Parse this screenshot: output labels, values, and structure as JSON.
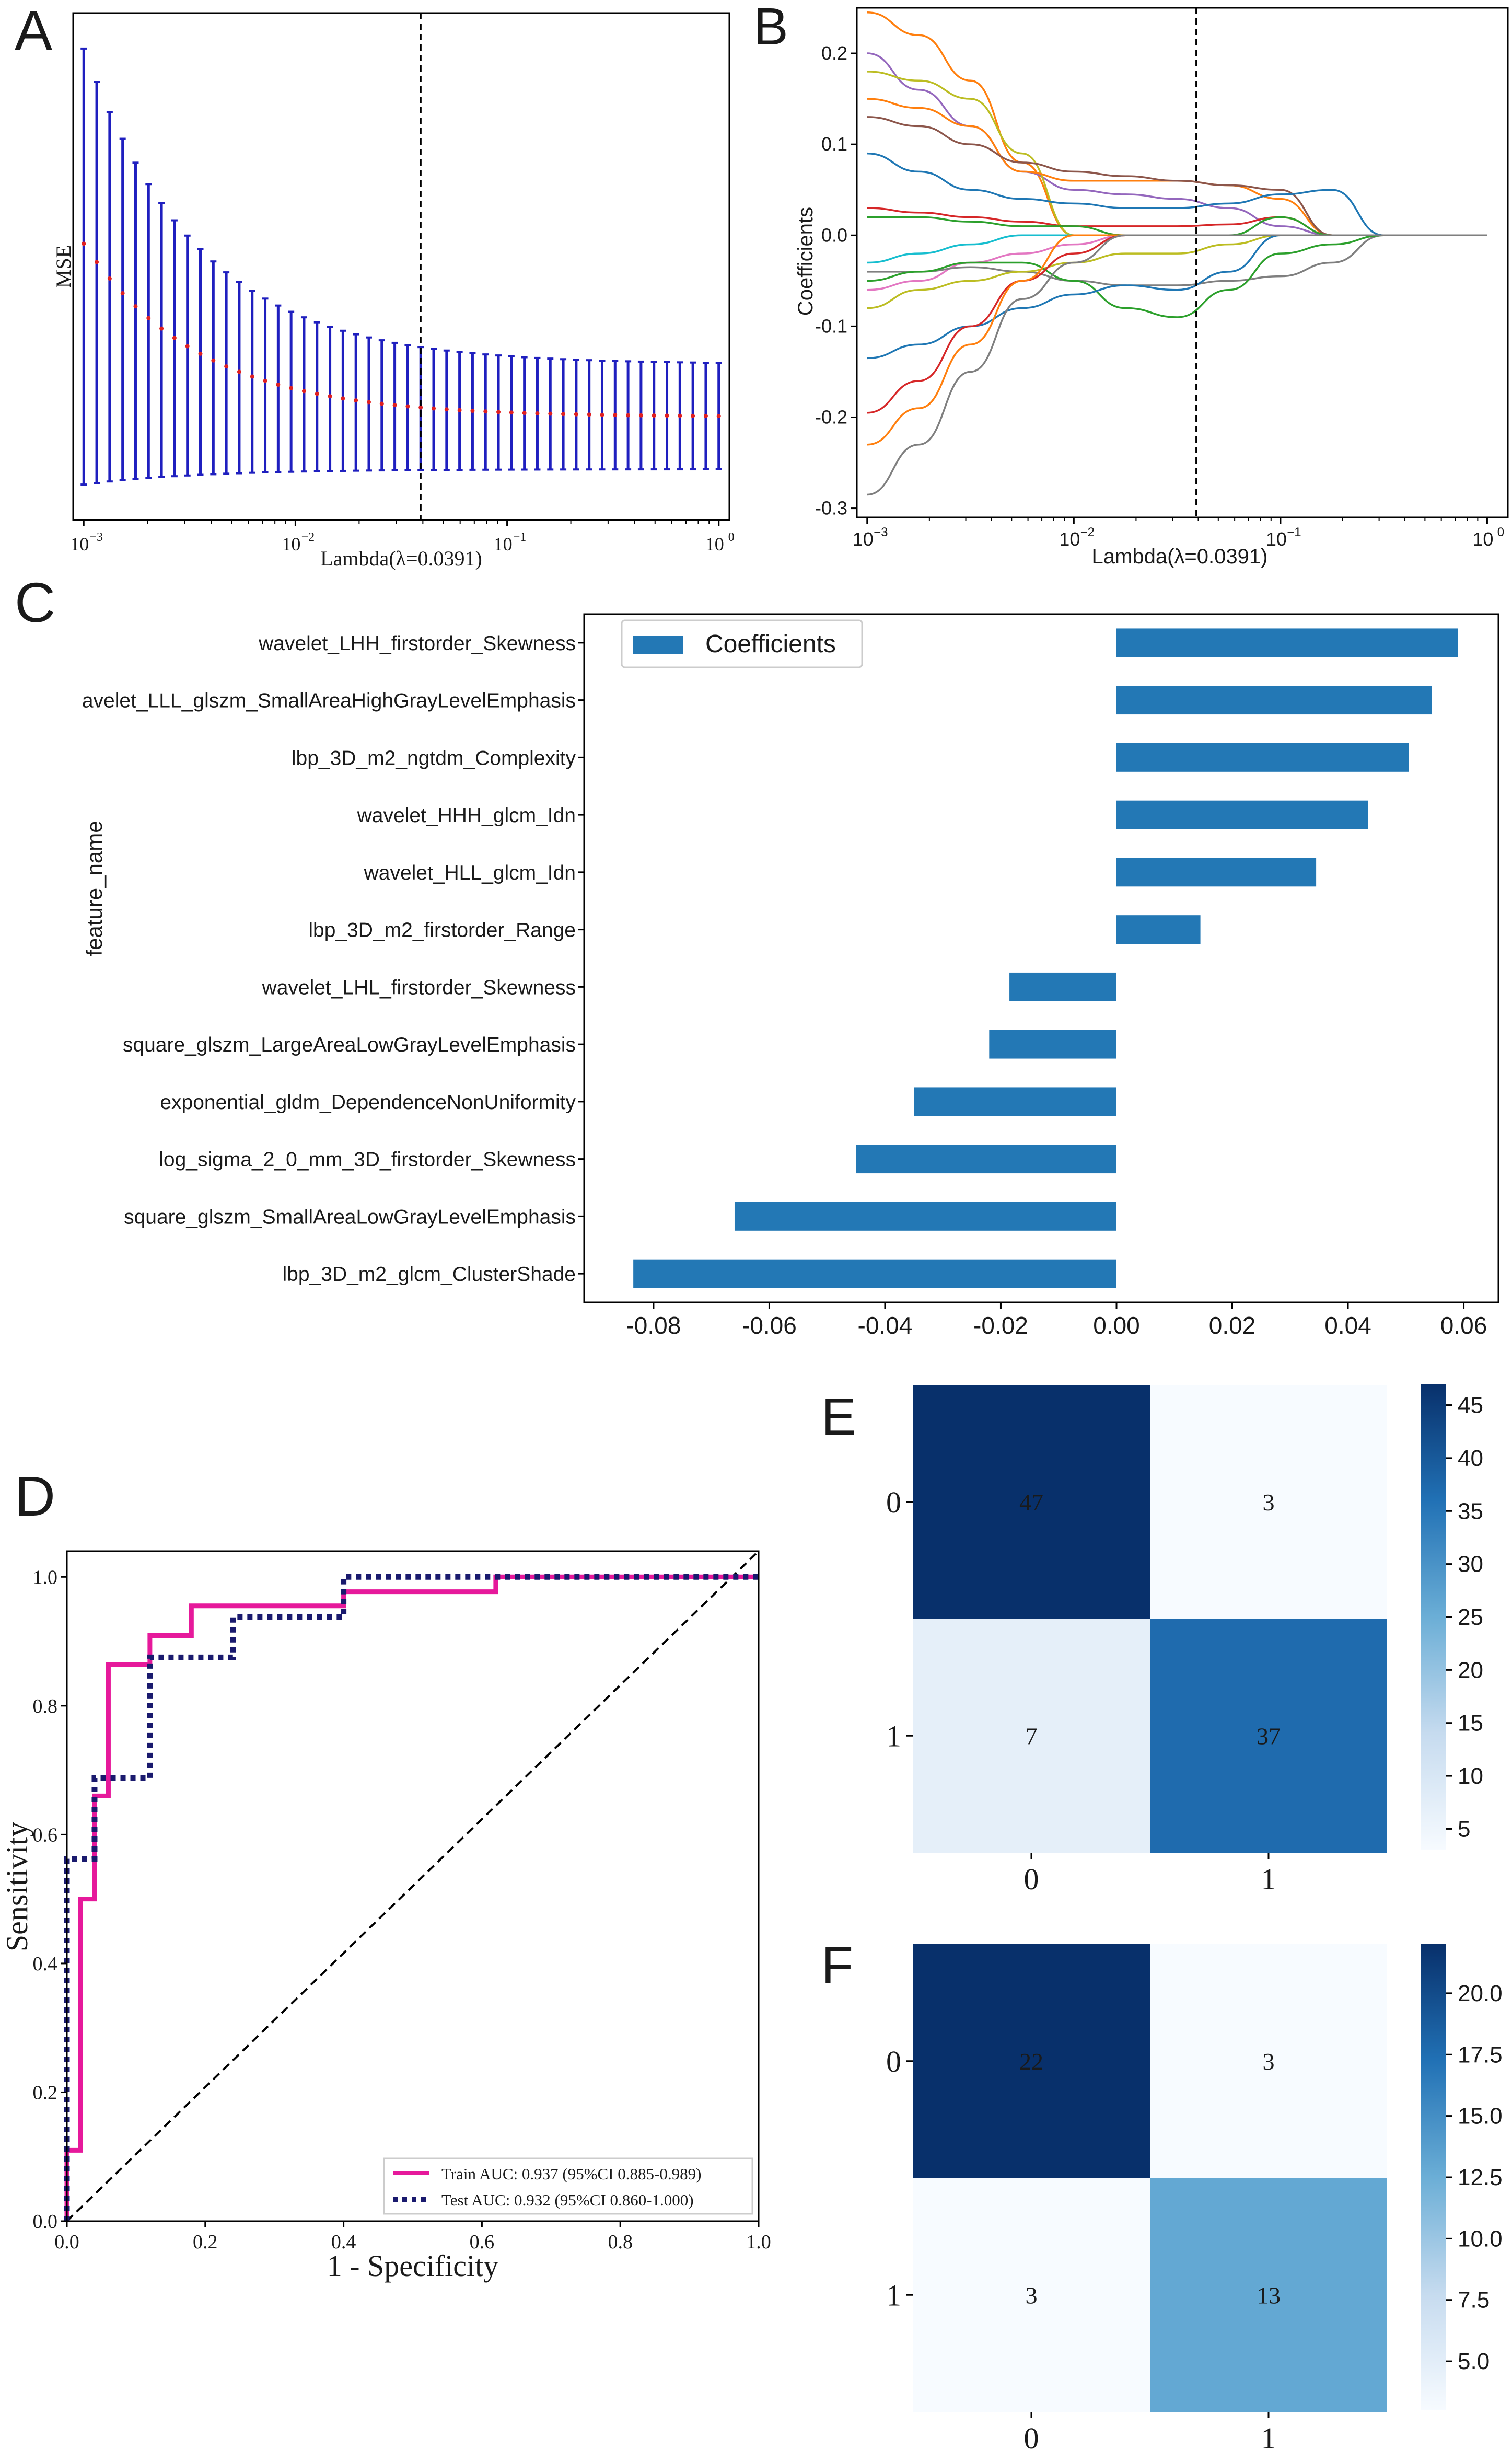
{
  "panels": {
    "A": {
      "letter": "A",
      "chart_data": {
        "type": "errorbar",
        "title": "",
        "xlabel": "Lambda(λ=0.0391)",
        "ylabel": "MSE",
        "xscale": "log",
        "xlim_exp": [
          -3.05,
          0.05
        ],
        "ylim": [
          0,
          1
        ],
        "lambda_line": 0.0391,
        "xtick_exps": [
          -3,
          -2,
          -1,
          0
        ],
        "xtick_labels": [
          "10",
          "10",
          "10",
          "10"
        ],
        "xtick_sup": [
          "−3",
          "−2",
          "−1",
          "0"
        ],
        "n_points": 50,
        "mean_start": 0.545,
        "mean_end": 0.205,
        "err_top_start": 0.93,
        "err_top_end": 0.31,
        "err_bot_start": 0.07,
        "err_bot_end": 0.1,
        "yticks": []
      }
    },
    "B": {
      "letter": "B",
      "chart_data": {
        "type": "line",
        "title": "",
        "xlabel": "Lambda(λ=0.0391)",
        "ylabel": "Coefficients",
        "xscale": "log",
        "xlim_exp": [
          -3.05,
          0.1
        ],
        "ylim": [
          -0.31,
          0.25
        ],
        "lambda_line": 0.0391,
        "xtick_exps": [
          -3,
          -2,
          -1,
          0
        ],
        "xtick_labels": [
          "10",
          "10",
          "10",
          "10"
        ],
        "xtick_sup": [
          "−3",
          "−2",
          "−1",
          "0"
        ],
        "ytick_values": [
          0.2,
          0.1,
          0.0,
          -0.1,
          -0.2,
          -0.3
        ],
        "ytick_labels": [
          "0.2",
          "0.1",
          "0.0",
          "-0.1",
          "-0.2",
          "-0.3"
        ],
        "x_exps": [
          -3,
          -2.75,
          -2.5,
          -2.25,
          -2,
          -1.75,
          -1.5,
          -1.25,
          -1,
          -0.75,
          -0.5,
          0
        ],
        "series": [
          {
            "color": "#ff7f0e",
            "values": [
              0.245,
              0.22,
              0.17,
              0.08,
              0.0,
              0.0,
              0.0,
              0.0,
              0.0,
              0.0,
              0.0,
              0.0
            ]
          },
          {
            "color": "#9467bd",
            "values": [
              0.2,
              0.16,
              0.12,
              0.07,
              0.05,
              0.045,
              0.04,
              0.03,
              0.01,
              0.0,
              0.0,
              0.0
            ]
          },
          {
            "color": "#bcbd22",
            "values": [
              0.18,
              0.17,
              0.15,
              0.09,
              0.0,
              0.0,
              0.0,
              0.0,
              0.0,
              0.0,
              0.0,
              0.0
            ]
          },
          {
            "color": "#ff7f0e",
            "values": [
              0.15,
              0.14,
              0.12,
              0.07,
              0.06,
              0.06,
              0.06,
              0.055,
              0.04,
              0.0,
              0.0,
              0.0
            ]
          },
          {
            "color": "#8c564b",
            "values": [
              0.13,
              0.12,
              0.1,
              0.08,
              0.07,
              0.065,
              0.06,
              0.055,
              0.05,
              0.0,
              0.0,
              0.0
            ]
          },
          {
            "color": "#1f77b4",
            "values": [
              0.09,
              0.07,
              0.05,
              0.04,
              0.035,
              0.03,
              0.03,
              0.035,
              0.045,
              0.05,
              0.0,
              0.0
            ]
          },
          {
            "color": "#d62728",
            "values": [
              0.03,
              0.025,
              0.02,
              0.015,
              0.01,
              0.01,
              0.01,
              0.012,
              0.02,
              0.0,
              0.0,
              0.0
            ]
          },
          {
            "color": "#2ca02c",
            "values": [
              0.02,
              0.02,
              0.015,
              0.01,
              0.01,
              0.0,
              0.0,
              0.0,
              0.02,
              0.0,
              0.0,
              0.0
            ]
          },
          {
            "color": "#17becf",
            "values": [
              -0.03,
              -0.02,
              -0.01,
              0.0,
              0.0,
              0.0,
              0.0,
              0.0,
              0.0,
              0.0,
              0.0,
              0.0
            ]
          },
          {
            "color": "#e377c2",
            "values": [
              -0.06,
              -0.05,
              -0.03,
              -0.02,
              -0.01,
              0.0,
              0.0,
              0.0,
              0.0,
              0.0,
              0.0,
              0.0
            ]
          },
          {
            "color": "#7f7f7f",
            "values": [
              -0.04,
              -0.04,
              -0.035,
              -0.04,
              -0.05,
              -0.055,
              -0.055,
              -0.05,
              -0.045,
              -0.03,
              0.0,
              0.0
            ]
          },
          {
            "color": "#bcbd22",
            "values": [
              -0.08,
              -0.06,
              -0.05,
              -0.04,
              -0.03,
              -0.02,
              -0.02,
              -0.01,
              0.0,
              0.0,
              0.0,
              0.0
            ]
          },
          {
            "color": "#2ca02c",
            "values": [
              -0.05,
              -0.04,
              -0.03,
              -0.03,
              -0.05,
              -0.08,
              -0.09,
              -0.06,
              -0.02,
              -0.01,
              0.0,
              0.0
            ]
          },
          {
            "color": "#1f77b4",
            "values": [
              -0.135,
              -0.12,
              -0.1,
              -0.08,
              -0.065,
              -0.055,
              -0.06,
              -0.04,
              0.0,
              0.0,
              0.0,
              0.0
            ]
          },
          {
            "color": "#d62728",
            "values": [
              -0.195,
              -0.16,
              -0.1,
              -0.05,
              -0.02,
              0.0,
              0.0,
              0.0,
              0.0,
              0.0,
              0.0,
              0.0
            ]
          },
          {
            "color": "#ff7f0e",
            "values": [
              -0.23,
              -0.19,
              -0.12,
              -0.05,
              0.0,
              0.0,
              0.0,
              0.0,
              0.0,
              0.0,
              0.0,
              0.0
            ]
          },
          {
            "color": "#7f7f7f",
            "values": [
              -0.285,
              -0.23,
              -0.15,
              -0.07,
              -0.03,
              0.0,
              0.0,
              0.0,
              0.0,
              0.0,
              0.0,
              0.0
            ]
          }
        ]
      }
    },
    "C": {
      "letter": "C",
      "chart_data": {
        "type": "barh",
        "title": "",
        "ylabel": "feature_name",
        "legend": "Coefficients",
        "color": "#2378b5",
        "xlim": [
          -0.092,
          0.066
        ],
        "xticks": [
          -0.08,
          -0.06,
          -0.04,
          -0.02,
          0.0,
          0.02,
          0.04,
          0.06
        ],
        "xtick_labels": [
          "-0.08",
          "-0.06",
          "-0.04",
          "-0.02",
          "0.00",
          "0.02",
          "0.04",
          "0.06"
        ],
        "categories": [
          "wavelet_LHH_firstorder_Skewness",
          "avelet_LLL_glszm_SmallAreaHighGrayLevelEmphasis",
          "lbp_3D_m2_ngtdm_Complexity",
          "wavelet_HHH_glcm_Idn",
          "wavelet_HLL_glcm_Idn",
          "lbp_3D_m2_firstorder_Range",
          "wavelet_LHL_firstorder_Skewness",
          "square_glszm_LargeAreaLowGrayLevelEmphasis",
          "exponential_gldm_DependenceNonUniformity",
          "log_sigma_2_0_mm_3D_firstorder_Skewness",
          "square_glszm_SmallAreaLowGrayLevelEmphasis",
          "lbp_3D_m2_glcm_ClusterShade"
        ],
        "values": [
          0.059,
          0.0545,
          0.0505,
          0.0435,
          0.0345,
          0.0145,
          -0.0185,
          -0.022,
          -0.035,
          -0.045,
          -0.066,
          -0.0835
        ]
      }
    },
    "D": {
      "letter": "D",
      "chart_data": {
        "type": "roc",
        "title": "",
        "xlabel": "1 - Specificity",
        "ylabel": "Sensitivity",
        "xlim": [
          0,
          1
        ],
        "ylim": [
          0,
          1.04
        ],
        "xticks": [
          0.0,
          0.2,
          0.4,
          0.6,
          0.8,
          1.0
        ],
        "xtick_labels": [
          "0.0",
          "0.2",
          "0.4",
          "0.6",
          "0.8",
          "1.0"
        ],
        "yticks": [
          0.0,
          0.2,
          0.4,
          0.6,
          0.8,
          1.0
        ],
        "ytick_labels": [
          "0.0",
          "0.2",
          "0.4",
          "0.6",
          "0.8",
          "1.0"
        ],
        "series": [
          {
            "name": "Train AUC: 0.937 (95%CI 0.885-0.989)",
            "color": "#e6199b",
            "style": "solid",
            "x": [
              0,
              0,
              0.02,
              0.02,
              0.04,
              0.04,
              0.06,
              0.06,
              0.12,
              0.12,
              0.18,
              0.18,
              0.4,
              0.4,
              0.62,
              0.62,
              1.0
            ],
            "y": [
              0,
              0.11,
              0.11,
              0.5,
              0.5,
              0.66,
              0.66,
              0.864,
              0.864,
              0.909,
              0.909,
              0.955,
              0.955,
              0.977,
              0.977,
              1.0,
              1.0
            ]
          },
          {
            "name": "Test AUC: 0.932 (95%CI 0.860-1.000)",
            "color": "#1a1a6e",
            "style": "dotted",
            "x": [
              0,
              0,
              0.04,
              0.04,
              0.08,
              0.08,
              0.12,
              0.12,
              0.24,
              0.24,
              0.4,
              0.4,
              1.0
            ],
            "y": [
              0,
              0.5625,
              0.5625,
              0.6875,
              0.6875,
              0.6875,
              0.6875,
              0.875,
              0.875,
              0.9375,
              0.9375,
              1.0,
              1.0
            ]
          }
        ]
      }
    },
    "E": {
      "letter": "E",
      "chart_data": {
        "type": "heatmap",
        "title": "",
        "row_labels": [
          "0",
          "1"
        ],
        "col_labels": [
          "0",
          "1"
        ],
        "matrix": [
          [
            47,
            3
          ],
          [
            7,
            37
          ]
        ],
        "vmin": 3,
        "vmax": 47,
        "colorbar_ticks": [
          45,
          40,
          35,
          30,
          25,
          20,
          15,
          10,
          5
        ],
        "colorbar_labels": [
          "45",
          "40",
          "35",
          "30",
          "25",
          "20",
          "15",
          "10",
          "5"
        ]
      }
    },
    "F": {
      "letter": "F",
      "chart_data": {
        "type": "heatmap",
        "title": "",
        "row_labels": [
          "0",
          "1"
        ],
        "col_labels": [
          "0",
          "1"
        ],
        "matrix": [
          [
            22,
            3
          ],
          [
            3,
            13
          ]
        ],
        "vmin": 3,
        "vmax": 22,
        "colorbar_ticks": [
          20.0,
          17.5,
          15.0,
          12.5,
          10.0,
          7.5,
          5.0
        ],
        "colorbar_labels": [
          "20.0",
          "17.5",
          "15.0",
          "12.5",
          "10.0",
          "7.5",
          "5.0"
        ]
      }
    }
  }
}
